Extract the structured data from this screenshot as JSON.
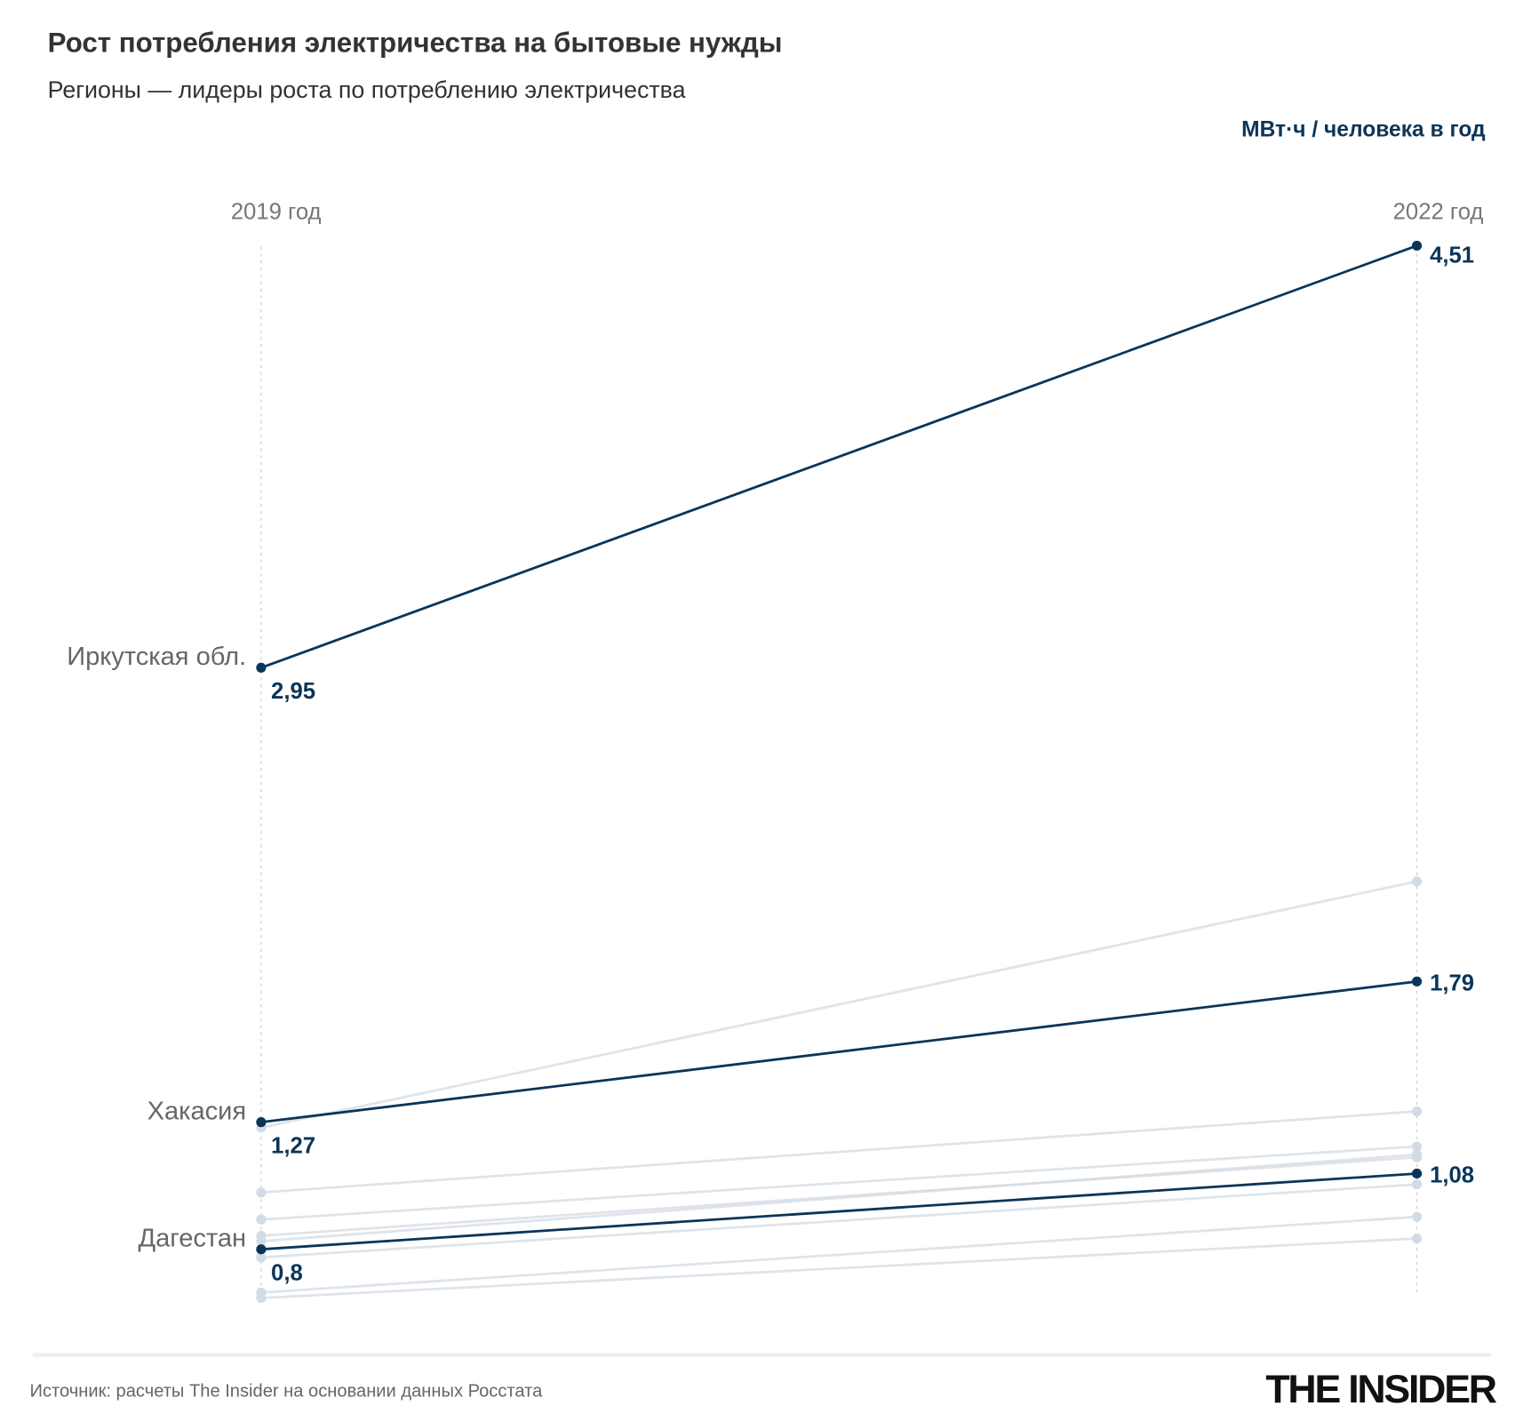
{
  "title": "Рост потребления электричества на бытовые нужды",
  "subtitle": "Регионы — лидеры роста по потреблению электричества",
  "source": "Источник: расчеты The Insider на основании данных Росстата",
  "logo": "THE INSIDER",
  "colors": {
    "highlight": "#0b3558",
    "muted": "#d3dbe4",
    "axis": "#cccccc"
  },
  "chart_data": {
    "type": "slope",
    "unit_label": "МВт·ч / человека в год",
    "x_labels": [
      "2019 год",
      "2022 год"
    ],
    "highlighted": [
      {
        "name": "Иркутская обл.",
        "start": 2.95,
        "end": 4.51,
        "start_label": "2,95",
        "end_label": "4,51"
      },
      {
        "name": "Хакасия",
        "start": 1.27,
        "end": 1.79,
        "start_label": "1,27",
        "end_label": "1,79"
      },
      {
        "name": "Дагестан",
        "start": 0.8,
        "end": 1.08,
        "start_label": "0,8",
        "end_label": "1,08"
      }
    ],
    "others": [
      {
        "start": 1.25,
        "end": 2.16
      },
      {
        "start": 1.01,
        "end": 1.31
      },
      {
        "start": 0.91,
        "end": 1.18
      },
      {
        "start": 0.85,
        "end": 1.14
      },
      {
        "start": 0.83,
        "end": 1.15
      },
      {
        "start": 0.77,
        "end": 1.04
      },
      {
        "start": 0.64,
        "end": 0.92
      },
      {
        "start": 0.62,
        "end": 0.84
      }
    ],
    "ylim": [
      0.6,
      4.51
    ]
  }
}
